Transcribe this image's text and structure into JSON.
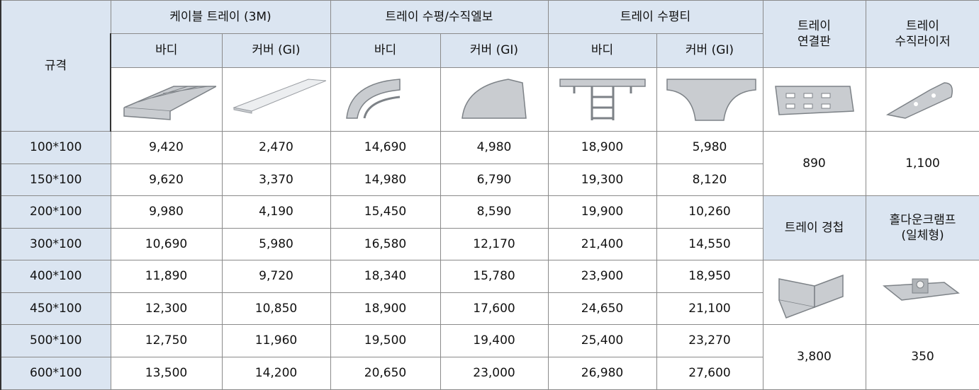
{
  "header": {
    "spec": "규격",
    "groups": [
      "케이블 트레이 (3M)",
      "트레이 수평/수직엘보",
      "트레이 수평티"
    ],
    "sub": [
      "바디",
      "커버 (GI)",
      "바디",
      "커버 (GI)",
      "바디",
      "커버 (GI)"
    ],
    "extra": [
      "트레이\n연결판",
      "트레이\n수직라이저"
    ]
  },
  "rows": [
    {
      "spec": "100*100",
      "values": [
        "9,420",
        "2,470",
        "14,690",
        "4,980",
        "18,900",
        "5,980"
      ]
    },
    {
      "spec": "150*100",
      "values": [
        "9,620",
        "3,370",
        "14,980",
        "6,790",
        "19,300",
        "8,120"
      ]
    },
    {
      "spec": "200*100",
      "values": [
        "9,980",
        "4,190",
        "15,450",
        "8,590",
        "19,900",
        "10,260"
      ]
    },
    {
      "spec": "300*100",
      "values": [
        "10,690",
        "5,980",
        "16,580",
        "12,170",
        "21,400",
        "14,550"
      ]
    },
    {
      "spec": "400*100",
      "values": [
        "11,890",
        "9,720",
        "18,340",
        "15,780",
        "23,900",
        "18,950"
      ]
    },
    {
      "spec": "450*100",
      "values": [
        "12,300",
        "10,850",
        "18,900",
        "17,600",
        "24,650",
        "21,100"
      ]
    },
    {
      "spec": "500*100",
      "values": [
        "12,750",
        "11,960",
        "19,500",
        "19,400",
        "25,400",
        "23,270"
      ]
    },
    {
      "spec": "600*100",
      "values": [
        "13,500",
        "14,200",
        "20,650",
        "23,000",
        "26,980",
        "27,600"
      ]
    }
  ],
  "connector_prices": [
    "890",
    "1,100"
  ],
  "hinge_headers": [
    "트레이 경첩",
    "홀다운크램프\n(일체형)"
  ],
  "hinge_prices": [
    "3,800",
    "350"
  ]
}
